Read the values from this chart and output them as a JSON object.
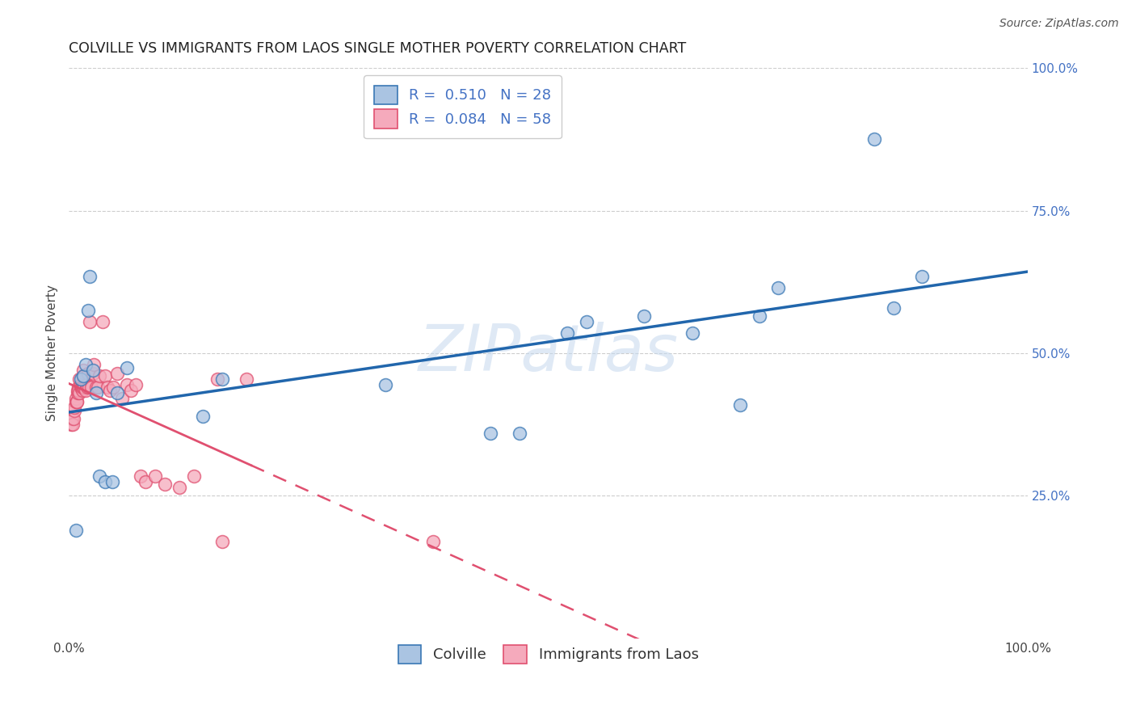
{
  "title": "COLVILLE VS IMMIGRANTS FROM LAOS SINGLE MOTHER POVERTY CORRELATION CHART",
  "source": "Source: ZipAtlas.com",
  "ylabel": "Single Mother Poverty",
  "xlim": [
    0,
    1
  ],
  "ylim": [
    0,
    1
  ],
  "colville_R": 0.51,
  "colville_N": 28,
  "laos_R": 0.084,
  "laos_N": 58,
  "colville_color": "#aac4e2",
  "colville_edge_color": "#3a78b5",
  "colville_line_color": "#2166ac",
  "laos_color": "#f5aabc",
  "laos_edge_color": "#e05070",
  "laos_line_color": "#e05070",
  "background_color": "#ffffff",
  "grid_color": "#c8c8c8",
  "watermark": "ZIPatlas",
  "right_tick_color": "#4472c4",
  "colville_x": [
    0.007,
    0.012,
    0.015,
    0.017,
    0.02,
    0.022,
    0.025,
    0.028,
    0.032,
    0.038,
    0.045,
    0.05,
    0.06,
    0.14,
    0.16,
    0.44,
    0.47,
    0.52,
    0.54,
    0.6,
    0.65,
    0.7,
    0.72,
    0.74,
    0.84,
    0.86,
    0.89,
    0.33
  ],
  "colville_y": [
    0.19,
    0.455,
    0.46,
    0.48,
    0.575,
    0.635,
    0.47,
    0.43,
    0.285,
    0.275,
    0.275,
    0.43,
    0.475,
    0.39,
    0.455,
    0.36,
    0.36,
    0.535,
    0.555,
    0.565,
    0.535,
    0.41,
    0.565,
    0.615,
    0.875,
    0.58,
    0.635,
    0.445
  ],
  "laos_x": [
    0.002,
    0.003,
    0.004,
    0.005,
    0.006,
    0.006,
    0.007,
    0.007,
    0.008,
    0.008,
    0.009,
    0.009,
    0.01,
    0.01,
    0.011,
    0.011,
    0.012,
    0.012,
    0.013,
    0.013,
    0.014,
    0.014,
    0.015,
    0.015,
    0.016,
    0.016,
    0.017,
    0.018,
    0.019,
    0.02,
    0.021,
    0.022,
    0.023,
    0.025,
    0.026,
    0.028,
    0.03,
    0.032,
    0.035,
    0.038,
    0.04,
    0.043,
    0.046,
    0.05,
    0.055,
    0.06,
    0.065,
    0.07,
    0.075,
    0.08,
    0.09,
    0.1,
    0.115,
    0.13,
    0.155,
    0.185,
    0.16,
    0.38
  ],
  "laos_y": [
    0.375,
    0.385,
    0.375,
    0.385,
    0.4,
    0.405,
    0.415,
    0.42,
    0.415,
    0.415,
    0.43,
    0.435,
    0.44,
    0.435,
    0.455,
    0.43,
    0.44,
    0.445,
    0.44,
    0.44,
    0.435,
    0.44,
    0.47,
    0.44,
    0.46,
    0.44,
    0.435,
    0.445,
    0.44,
    0.465,
    0.44,
    0.555,
    0.44,
    0.465,
    0.48,
    0.44,
    0.44,
    0.46,
    0.555,
    0.46,
    0.44,
    0.435,
    0.44,
    0.465,
    0.42,
    0.445,
    0.435,
    0.445,
    0.285,
    0.275,
    0.285,
    0.27,
    0.265,
    0.285,
    0.455,
    0.455,
    0.17,
    0.17
  ],
  "title_fontsize": 12.5,
  "axis_label_fontsize": 11,
  "tick_fontsize": 11,
  "legend_fontsize": 13,
  "source_fontsize": 10
}
